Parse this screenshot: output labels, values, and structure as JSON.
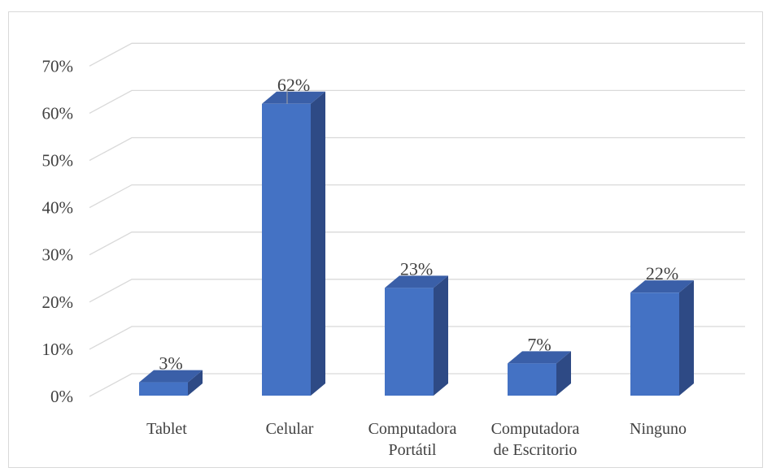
{
  "chart_data": {
    "type": "bar",
    "style": "3d-column",
    "title": "",
    "xlabel": "",
    "ylabel": "",
    "categories": [
      [
        "Tablet"
      ],
      [
        "Celular"
      ],
      [
        "Computadora",
        "Portátil"
      ],
      [
        "Computadora",
        "de Escritorio"
      ],
      [
        "Ninguno"
      ]
    ],
    "values": [
      3,
      62,
      23,
      7,
      22
    ],
    "data_labels": [
      "3%",
      "62%",
      "23%",
      "7%",
      "22%"
    ],
    "ylim": [
      0,
      70
    ],
    "yticks": [
      "0%",
      "10%",
      "20%",
      "30%",
      "40%",
      "50%",
      "60%",
      "70%"
    ],
    "grid": true,
    "legend": "none",
    "colors": {
      "bar_front": "#4472c4",
      "bar_side": "#2e4a85",
      "bar_top": "#3a5fa8",
      "grid": "#d9d9d9",
      "text": "#404040"
    }
  }
}
